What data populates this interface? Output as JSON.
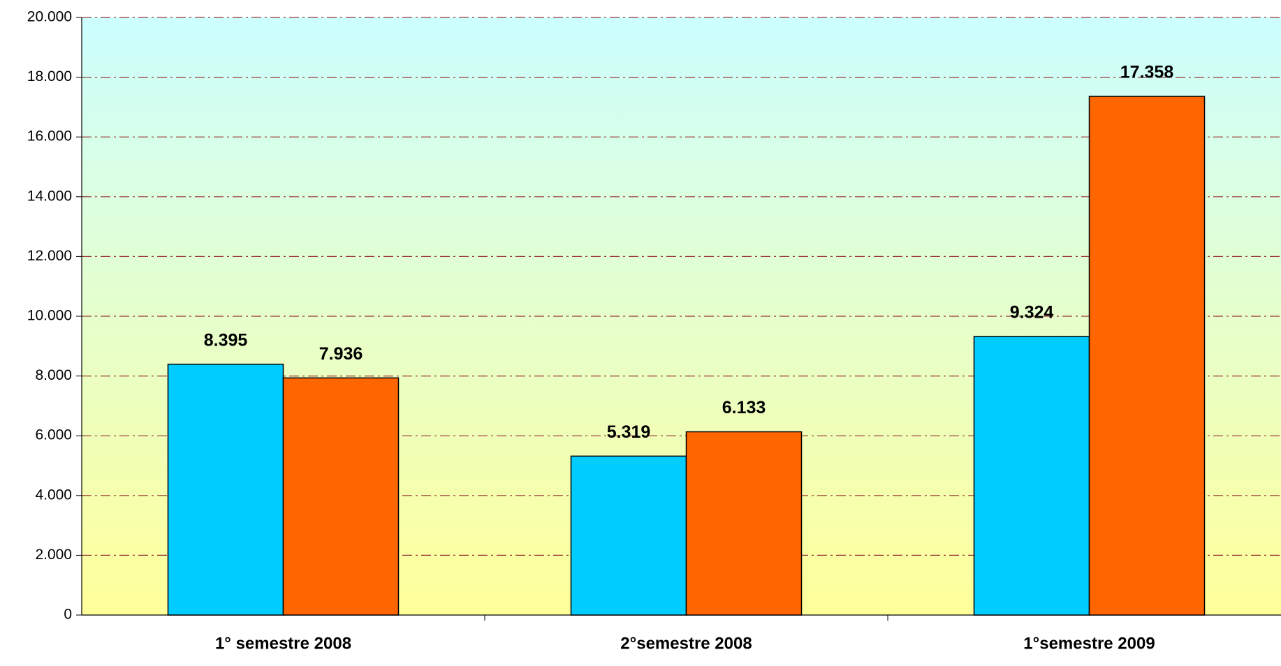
{
  "chart_data": {
    "type": "bar",
    "categories": [
      "1° semestre 2008",
      "2°semestre 2008",
      "1°semestre 2009"
    ],
    "series": [
      {
        "color": "#00ccff",
        "values": [
          8395,
          5319,
          9324
        ],
        "value_labels": [
          "8.395",
          "5.319",
          "9.324"
        ]
      },
      {
        "color": "#ff6600",
        "values": [
          7936,
          6133,
          17358
        ],
        "value_labels": [
          "7.936",
          "6.133",
          "17.358"
        ]
      }
    ],
    "ylim": [
      0,
      20000
    ],
    "yticks": [
      {
        "value": 0,
        "label": "0"
      },
      {
        "value": 2000,
        "label": "2.000"
      },
      {
        "value": 4000,
        "label": "4.000"
      },
      {
        "value": 6000,
        "label": "6.000"
      },
      {
        "value": 8000,
        "label": "8.000"
      },
      {
        "value": 10000,
        "label": "10.000"
      },
      {
        "value": 12000,
        "label": "12.000"
      },
      {
        "value": 14000,
        "label": "14.000"
      },
      {
        "value": 16000,
        "label": "16.000"
      },
      {
        "value": 18000,
        "label": "18.000"
      },
      {
        "value": 20000,
        "label": "20.000"
      }
    ],
    "grid": true
  }
}
